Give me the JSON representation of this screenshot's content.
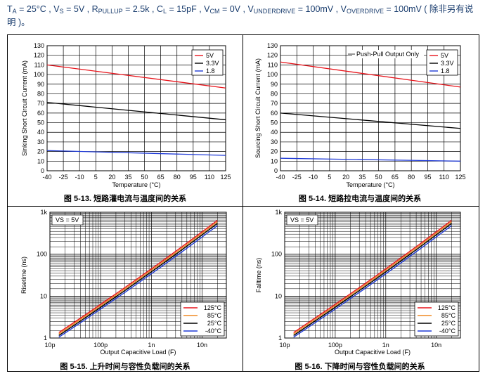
{
  "header": {
    "ta": "T",
    "ta_sub": "A",
    "ta_val": " = 25°C , ",
    "vs": "V",
    "vs_sub": "S",
    "vs_val": " = 5V , ",
    "rp": "R",
    "rp_sub": "PULLUP",
    "rp_val": " = 2.5k , ",
    "cl": "C",
    "cl_sub": "L",
    "cl_val": " = 15pF , ",
    "vcm": "V",
    "vcm_sub": "CM",
    "vcm_val": " = 0V , ",
    "vu": "V",
    "vu_sub": "UNDERDRIVE",
    "vu_val": " = 100mV , ",
    "vo": "V",
    "vo_sub": "OVERDRIVE",
    "vo_val": " = 100mV ( 除非另有说",
    "line2": "明 )。"
  },
  "captions": {
    "c1": "图 5-13. 短路灌电流与温度间的关系",
    "c2": "图 5-14. 短路拉电流与温度间的关系",
    "c3": "图 5-15. 上升时间与容性负载间的关系",
    "c4": "图 5-16. 下降时间与容性负载间的关系"
  },
  "chart_data": [
    {
      "type": "line",
      "title": "",
      "xlabel": "Temperature (°C)",
      "ylabel": "Sinking Short Circuit Current (mA)",
      "xlim": [
        -40,
        125
      ],
      "ylim": [
        0,
        130
      ],
      "xticks": [
        -40,
        -25,
        -10,
        5,
        20,
        35,
        50,
        65,
        80,
        95,
        110,
        125
      ],
      "yticks": [
        0,
        10,
        20,
        30,
        40,
        50,
        60,
        70,
        80,
        90,
        100,
        110,
        120,
        130
      ],
      "legend_position": "top-right",
      "annotation": "",
      "series": [
        {
          "name": "5V",
          "color": "#e8141b",
          "x": [
            -40,
            125
          ],
          "values": [
            110,
            86
          ]
        },
        {
          "name": "3.3V",
          "color": "#000000",
          "x": [
            -40,
            125
          ],
          "values": [
            71,
            53
          ]
        },
        {
          "name": "1.8",
          "color": "#1f3ad6",
          "x": [
            -40,
            125
          ],
          "values": [
            21,
            16
          ]
        }
      ]
    },
    {
      "type": "line",
      "title": "",
      "xlabel": "Temperature (°C)",
      "ylabel": "Sourcing Short Circuit Current (mA)",
      "xlim": [
        -40,
        125
      ],
      "ylim": [
        0,
        130
      ],
      "xticks": [
        -40,
        -25,
        -10,
        5,
        20,
        35,
        50,
        65,
        80,
        95,
        110,
        125
      ],
      "yticks": [
        0,
        10,
        20,
        30,
        40,
        50,
        60,
        70,
        80,
        90,
        100,
        110,
        120,
        130
      ],
      "legend_position": "top-right",
      "annotation": "Push-Pull Output Only",
      "series": [
        {
          "name": "5V",
          "color": "#e8141b",
          "x": [
            -40,
            125
          ],
          "values": [
            113,
            87
          ]
        },
        {
          "name": "3.3V",
          "color": "#000000",
          "x": [
            -40,
            125
          ],
          "values": [
            60,
            44
          ]
        },
        {
          "name": "1.8",
          "color": "#1f3ad6",
          "x": [
            -40,
            125
          ],
          "values": [
            13,
            10
          ]
        }
      ]
    },
    {
      "type": "line",
      "title": "",
      "xlabel": "Output Capacitive Load (F)",
      "ylabel": "Risetime (ns)",
      "xscale": "log",
      "yscale": "log",
      "xlim": [
        1e-11,
        3e-08
      ],
      "ylim": [
        1,
        1000
      ],
      "xtick_labels": [
        "10p",
        "100p",
        "1n",
        "10n"
      ],
      "ytick_labels": [
        "1",
        "10",
        "100",
        "1k"
      ],
      "legend_position": "bottom-right",
      "annotation": "VS = 5V",
      "series": [
        {
          "name": "125°C",
          "color": "#e8141b",
          "x": [
            1.5e-11,
            2e-08
          ],
          "values": [
            1.35,
            640
          ]
        },
        {
          "name": "85°C",
          "color": "#f08a24",
          "x": [
            1.5e-11,
            2e-08
          ],
          "values": [
            1.25,
            590
          ]
        },
        {
          "name": "25°C",
          "color": "#000000",
          "x": [
            1.5e-11,
            2e-08
          ],
          "values": [
            1.15,
            540
          ]
        },
        {
          "name": "-40°C",
          "color": "#1f3ad6",
          "x": [
            1.5e-11,
            2e-08
          ],
          "values": [
            1.05,
            480
          ]
        }
      ]
    },
    {
      "type": "line",
      "title": "",
      "xlabel": "Output Capacitive Load (F)",
      "ylabel": "Falltime (ns)",
      "xscale": "log",
      "yscale": "log",
      "xlim": [
        1e-11,
        3e-08
      ],
      "ylim": [
        1,
        1000
      ],
      "xtick_labels": [
        "10p",
        "100p",
        "1n",
        "10n"
      ],
      "ytick_labels": [
        "1",
        "10",
        "100",
        "1k"
      ],
      "legend_position": "bottom-right",
      "annotation": "VS = 5V",
      "series": [
        {
          "name": "125°C",
          "color": "#e8141b",
          "x": [
            1.5e-11,
            2e-08
          ],
          "values": [
            1.35,
            640
          ]
        },
        {
          "name": "85°C",
          "color": "#f08a24",
          "x": [
            1.5e-11,
            2e-08
          ],
          "values": [
            1.25,
            590
          ]
        },
        {
          "name": "25°C",
          "color": "#000000",
          "x": [
            1.5e-11,
            2e-08
          ],
          "values": [
            1.15,
            540
          ]
        },
        {
          "name": "-40°C",
          "color": "#1f3ad6",
          "x": [
            1.5e-11,
            2e-08
          ],
          "values": [
            1.05,
            480
          ]
        }
      ]
    }
  ]
}
